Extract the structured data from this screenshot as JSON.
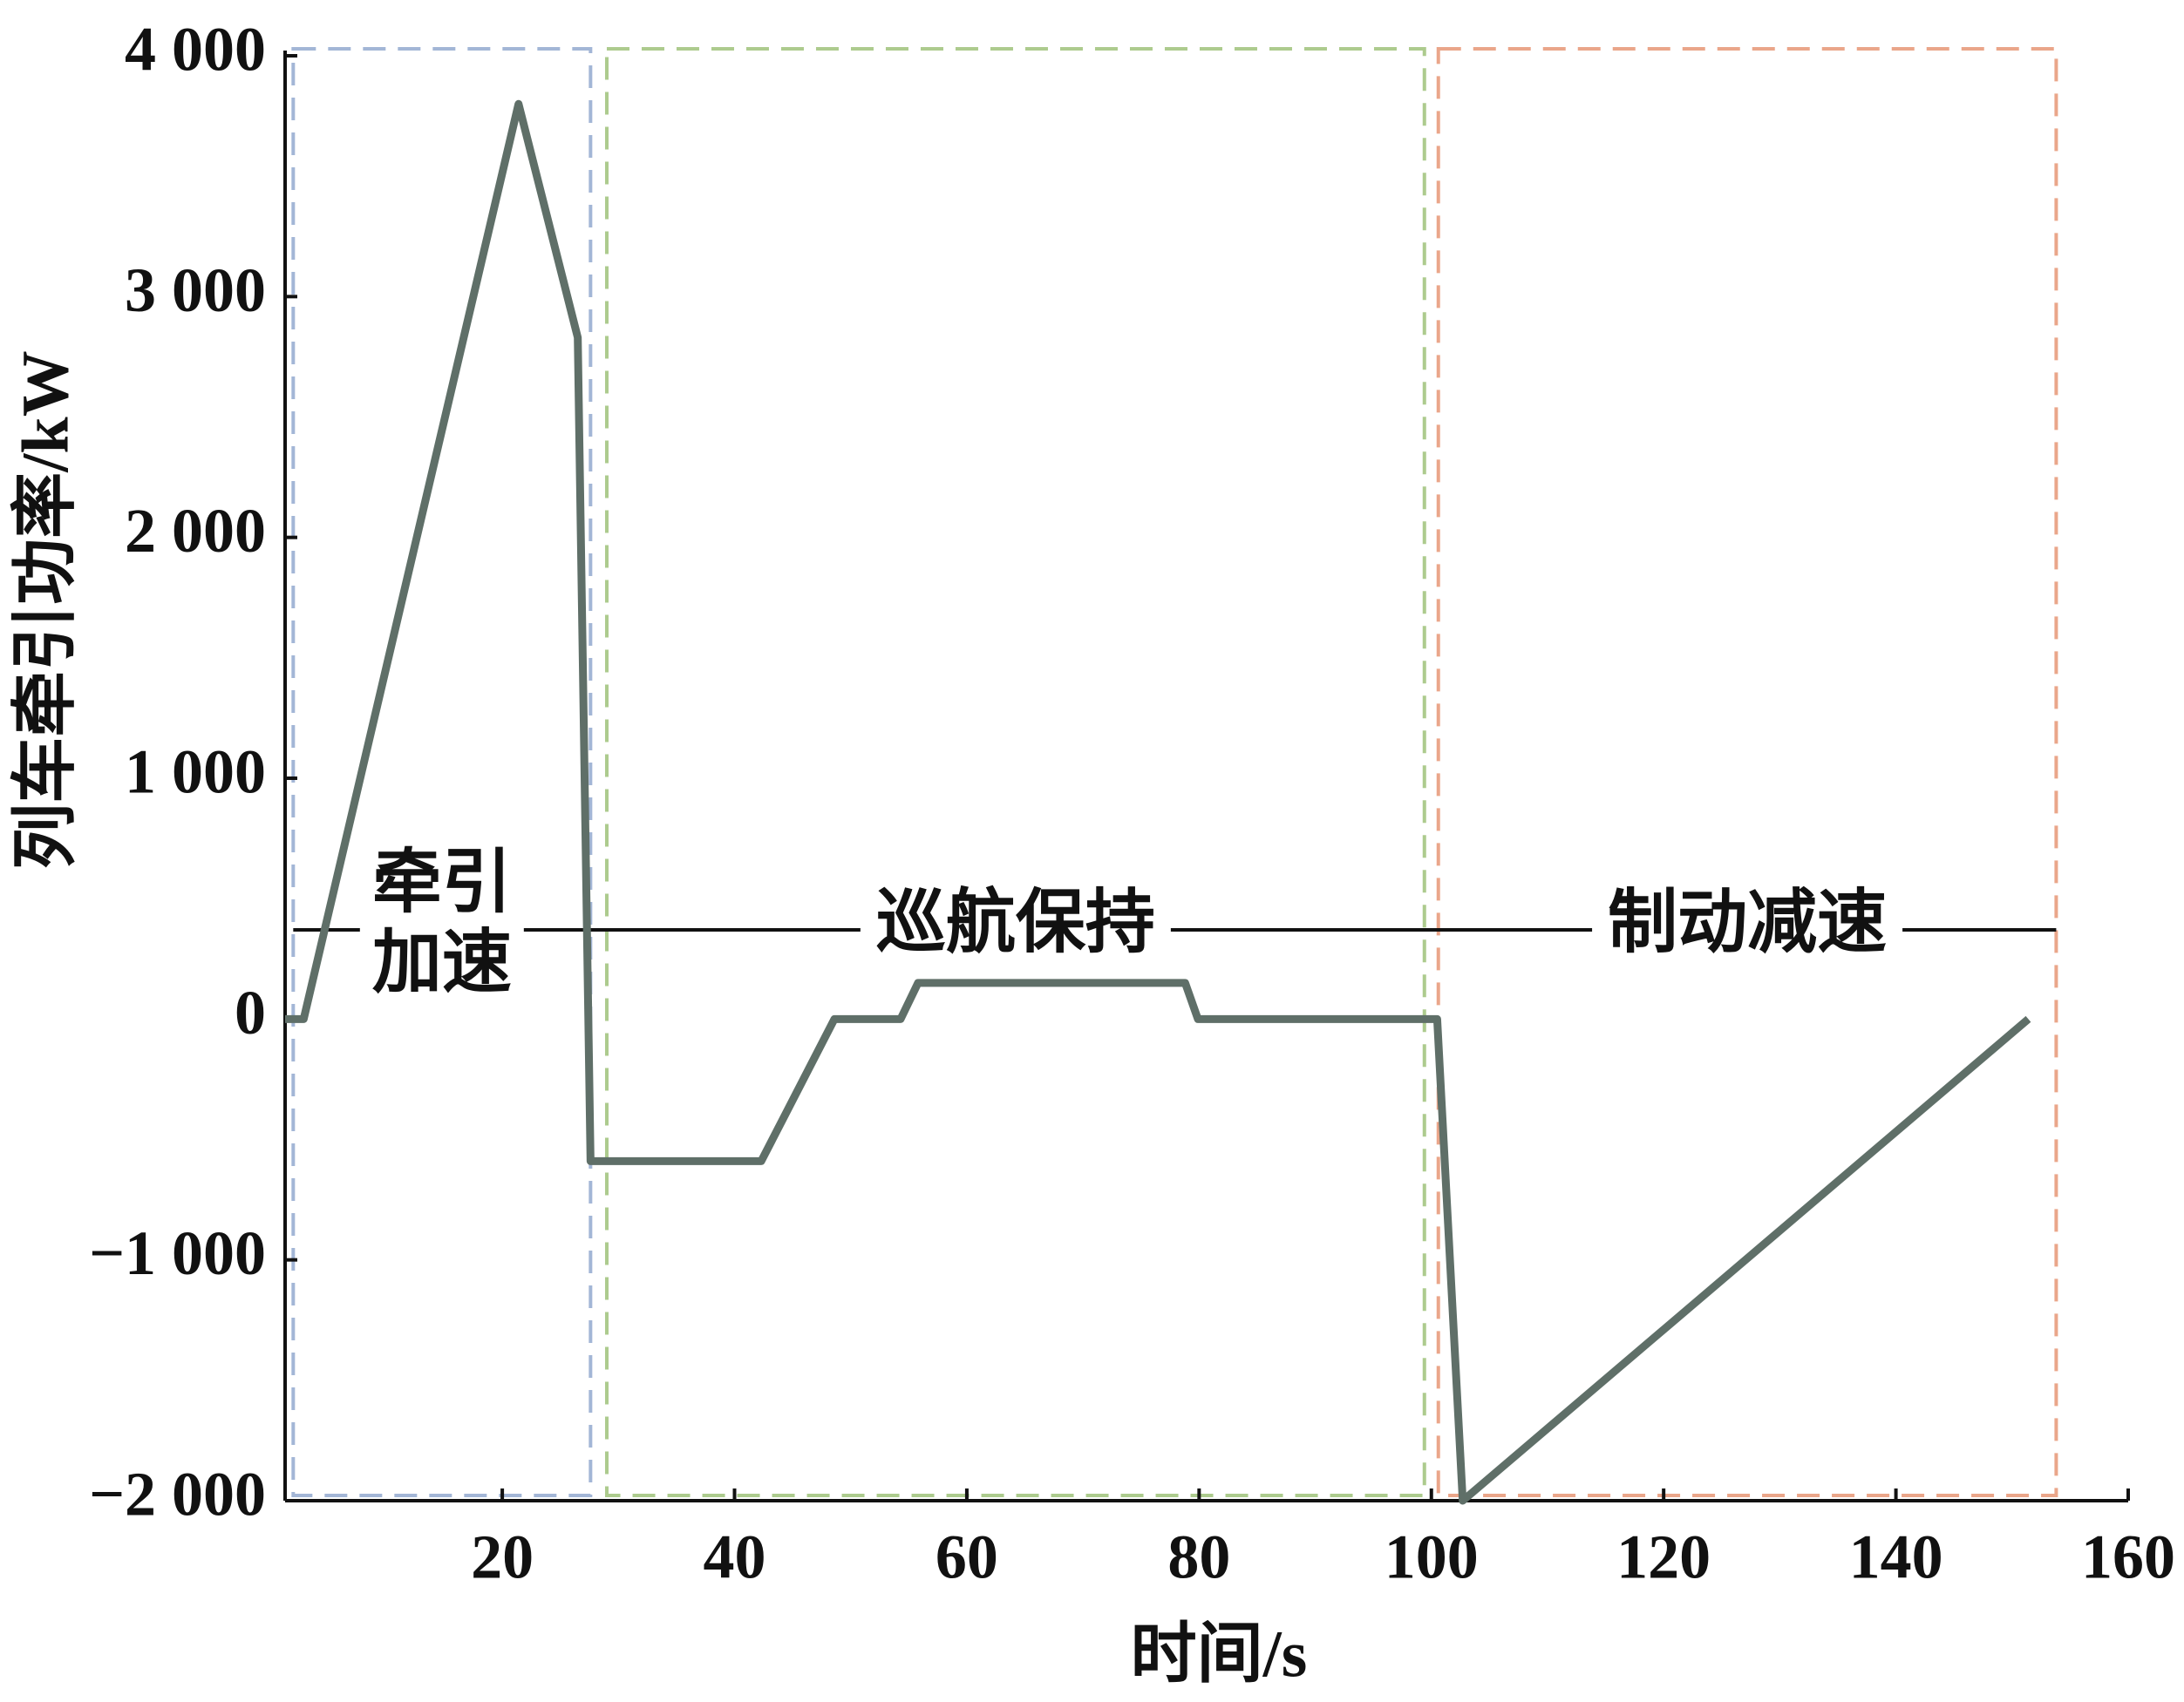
{
  "chart_data": {
    "type": "line",
    "x_label": "时间/s",
    "y_label": "列车牵引功率/kW",
    "series": [
      {
        "name": "列车牵引功率",
        "color": "#5f6f68",
        "x": [
          1.3,
          2.9,
          21.4,
          26.5,
          27.6,
          42.3,
          48.6,
          54.3,
          55.8,
          78.8,
          79.9,
          100.5,
          102.7,
          151.4
        ],
        "values": [
          0,
          0,
          3800,
          2830,
          -590,
          -590,
          0,
          0,
          150,
          150,
          0,
          0,
          -2000,
          0
        ]
      }
    ],
    "phases": [
      {
        "label": [
          "牵引",
          "加速"
        ],
        "color": "#a3b6d6",
        "x": [
          2.0,
          27.6
        ]
      },
      {
        "label": [
          "巡航保持"
        ],
        "color": "#adcb8e",
        "x": [
          29.0,
          99.4
        ]
      },
      {
        "label": [
          "制动减速"
        ],
        "color": "#eaa68a",
        "x": [
          100.6,
          153.8
        ]
      }
    ],
    "xlim": [
      1.3,
      160
    ],
    "xticks": [
      20,
      40,
      60,
      80,
      100,
      120,
      140,
      160
    ],
    "ylim": [
      -2000,
      4000
    ],
    "yticks": [
      {
        "value": -2000,
        "label": "−2 000"
      },
      {
        "value": -1000,
        "label": "−1 000"
      },
      0,
      {
        "value": 1000,
        "label": "1 000"
      },
      {
        "value": 2000,
        "label": "2 000"
      },
      {
        "value": 3000,
        "label": "3 000"
      },
      {
        "value": 4000,
        "label": "4 000"
      }
    ]
  }
}
